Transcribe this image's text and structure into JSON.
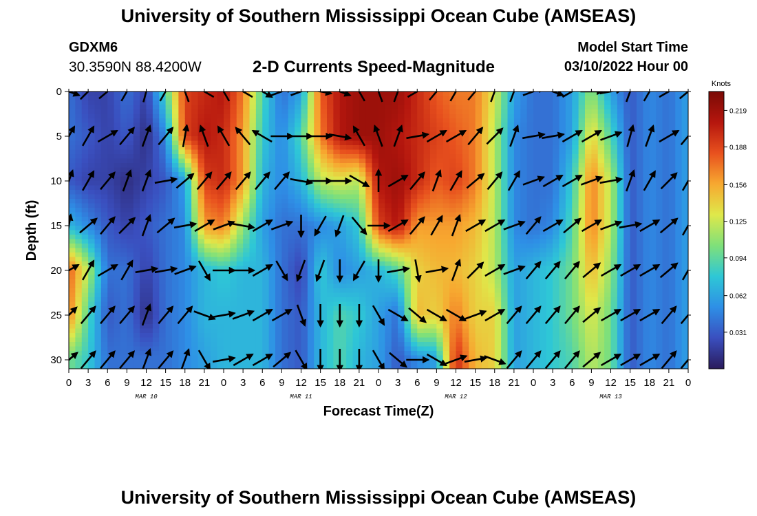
{
  "header": {
    "title": "University of Southern Mississippi Ocean Cube (AMSEAS)",
    "station_id": "GDXM6",
    "station_coords": "30.3590N  88.4200W",
    "subtitle": "2-D Currents Speed-Magnitude",
    "model_start_label": "Model Start Time",
    "model_start_value": "03/10/2022 Hour 00"
  },
  "footer": {
    "title": "University of Southern Mississippi Ocean Cube (AMSEAS)"
  },
  "colors": {
    "scale": [
      "#2a1b5c",
      "#3a4fbf",
      "#2e8fe6",
      "#2ec7d6",
      "#7fe07a",
      "#dfe84a",
      "#f7a830",
      "#e8511e",
      "#b5160e",
      "#7a0a05"
    ]
  },
  "chart_data": {
    "type": "heatmap",
    "title": "2-D Currents Speed-Magnitude",
    "xlabel": "Forecast Time(Z)",
    "ylabel": "Depth (ft)",
    "x_range_hours": [
      0,
      96
    ],
    "ylim": [
      0,
      31
    ],
    "x_ticks": [
      0,
      3,
      6,
      9,
      12,
      15,
      18,
      21,
      24,
      27,
      30,
      33,
      36,
      39,
      42,
      45,
      48,
      51,
      54,
      57,
      60,
      63,
      66,
      69,
      72,
      75,
      78,
      81,
      84,
      87,
      90,
      93,
      96
    ],
    "x_tick_labels": [
      "0",
      "3",
      "6",
      "9",
      "12",
      "15",
      "18",
      "21",
      "0",
      "3",
      "6",
      "9",
      "12",
      "15",
      "18",
      "21",
      "0",
      "3",
      "6",
      "9",
      "12",
      "15",
      "18",
      "21",
      "0",
      "3",
      "6",
      "9",
      "12",
      "15",
      "18",
      "21",
      "0"
    ],
    "y_ticks": [
      0,
      5,
      10,
      15,
      20,
      25,
      30
    ],
    "y_tick_labels": [
      "0",
      "5",
      "10",
      "15",
      "20",
      "25",
      "30"
    ],
    "day_labels": [
      {
        "hour": 12,
        "text": "MAR 10"
      },
      {
        "hour": 36,
        "text": "MAR 11"
      },
      {
        "hour": 60,
        "text": "MAR 12"
      },
      {
        "hour": 84,
        "text": "MAR 13"
      }
    ],
    "colorbar": {
      "units": "Knots",
      "min": 0,
      "max": 0.235,
      "ticks": [
        0.219,
        0.188,
        0.156,
        0.125,
        0.094,
        0.062,
        0.031
      ]
    },
    "speed_grid": {
      "hours": [
        0,
        3,
        6,
        9,
        12,
        15,
        18,
        21,
        24,
        27,
        30,
        33,
        36,
        39,
        42,
        45,
        48,
        51,
        54,
        57,
        60,
        63,
        66,
        69,
        72,
        75,
        78,
        81,
        84,
        87,
        90,
        93,
        96
      ],
      "depths": [
        0,
        5,
        10,
        15,
        20,
        25,
        30
      ],
      "values": [
        [
          0.04,
          0.02,
          0.02,
          0.04,
          0.02,
          0.09,
          0.19,
          0.2,
          0.21,
          0.17,
          0.09,
          0.04,
          0.06,
          0.18,
          0.21,
          0.22,
          0.22,
          0.22,
          0.2,
          0.18,
          0.17,
          0.17,
          0.13,
          0.06,
          0.04,
          0.04,
          0.06,
          0.11,
          0.06,
          0.03,
          0.05,
          0.04,
          0.06
        ],
        [
          0.04,
          0.03,
          0.02,
          0.03,
          0.01,
          0.05,
          0.19,
          0.21,
          0.2,
          0.16,
          0.08,
          0.05,
          0.09,
          0.17,
          0.21,
          0.22,
          0.22,
          0.21,
          0.2,
          0.19,
          0.18,
          0.17,
          0.12,
          0.05,
          0.04,
          0.04,
          0.06,
          0.14,
          0.09,
          0.03,
          0.05,
          0.04,
          0.06
        ],
        [
          0.03,
          0.02,
          0.02,
          0.01,
          0.02,
          0.03,
          0.06,
          0.19,
          0.2,
          0.16,
          0.07,
          0.05,
          0.07,
          0.12,
          0.13,
          0.12,
          0.21,
          0.22,
          0.2,
          0.18,
          0.19,
          0.17,
          0.12,
          0.05,
          0.04,
          0.04,
          0.08,
          0.17,
          0.12,
          0.03,
          0.05,
          0.04,
          0.06
        ],
        [
          0.07,
          0.05,
          0.03,
          0.02,
          0.03,
          0.04,
          0.05,
          0.16,
          0.17,
          0.11,
          0.06,
          0.04,
          0.04,
          0.05,
          0.06,
          0.08,
          0.19,
          0.21,
          0.16,
          0.16,
          0.16,
          0.15,
          0.12,
          0.05,
          0.04,
          0.05,
          0.09,
          0.17,
          0.12,
          0.03,
          0.05,
          0.04,
          0.06
        ],
        [
          0.18,
          0.12,
          0.04,
          0.04,
          0.02,
          0.04,
          0.05,
          0.07,
          0.08,
          0.07,
          0.07,
          0.04,
          0.02,
          0.08,
          0.05,
          0.06,
          0.07,
          0.09,
          0.14,
          0.15,
          0.15,
          0.14,
          0.12,
          0.06,
          0.07,
          0.08,
          0.1,
          0.15,
          0.11,
          0.03,
          0.05,
          0.04,
          0.06
        ],
        [
          0.17,
          0.09,
          0.03,
          0.04,
          0.01,
          0.04,
          0.05,
          0.07,
          0.07,
          0.07,
          0.07,
          0.04,
          0.03,
          0.07,
          0.09,
          0.08,
          0.06,
          0.04,
          0.15,
          0.14,
          0.17,
          0.14,
          0.14,
          0.06,
          0.07,
          0.08,
          0.1,
          0.13,
          0.1,
          0.03,
          0.05,
          0.04,
          0.06
        ],
        [
          0.1,
          0.08,
          0.04,
          0.04,
          0.04,
          0.04,
          0.05,
          0.06,
          0.07,
          0.07,
          0.07,
          0.04,
          0.03,
          0.07,
          0.09,
          0.07,
          0.06,
          0.03,
          0.05,
          0.06,
          0.2,
          0.15,
          0.14,
          0.06,
          0.07,
          0.08,
          0.09,
          0.12,
          0.1,
          0.03,
          0.05,
          0.04,
          0.06
        ]
      ]
    },
    "vectors": {
      "hours": [
        0,
        3,
        6,
        9,
        12,
        15,
        18,
        21,
        24,
        27,
        30,
        33,
        36,
        39,
        42,
        45,
        48,
        51,
        54,
        57,
        60,
        63,
        66,
        69,
        72,
        75,
        78,
        81,
        84,
        87,
        90,
        93,
        96
      ],
      "depths": [
        0,
        5,
        10,
        15,
        20,
        25,
        30
      ],
      "direction_deg": [
        [
          110,
          45,
          50,
          30,
          15,
          30,
          340,
          300,
          330,
          300,
          120,
          70,
          70,
          100,
          110,
          330,
          340,
          20,
          60,
          40,
          30,
          40,
          20,
          20,
          70,
          110,
          60,
          90,
          80,
          20,
          30,
          60,
          50
        ],
        [
          30,
          30,
          60,
          40,
          20,
          40,
          10,
          340,
          330,
          320,
          300,
          90,
          90,
          90,
          100,
          330,
          340,
          20,
          80,
          60,
          60,
          40,
          45,
          20,
          80,
          80,
          60,
          60,
          70,
          15,
          20,
          60,
          40
        ],
        [
          20,
          30,
          40,
          20,
          20,
          80,
          50,
          40,
          40,
          40,
          40,
          40,
          100,
          90,
          90,
          120,
          0,
          60,
          40,
          20,
          30,
          50,
          40,
          30,
          70,
          60,
          60,
          70,
          80,
          20,
          30,
          45,
          30
        ],
        [
          10,
          50,
          40,
          45,
          20,
          50,
          80,
          60,
          70,
          100,
          60,
          70,
          180,
          210,
          200,
          140,
          90,
          60,
          40,
          30,
          20,
          60,
          60,
          70,
          40,
          60,
          50,
          60,
          70,
          80,
          60,
          50,
          30
        ],
        [
          60,
          30,
          60,
          30,
          80,
          80,
          70,
          150,
          90,
          90,
          60,
          150,
          200,
          200,
          180,
          210,
          180,
          80,
          170,
          80,
          20,
          45,
          60,
          70,
          40,
          40,
          40,
          50,
          60,
          60,
          60,
          50,
          30
        ],
        [
          45,
          40,
          40,
          40,
          20,
          40,
          40,
          110,
          80,
          70,
          60,
          60,
          160,
          180,
          180,
          180,
          150,
          120,
          130,
          120,
          120,
          70,
          60,
          40,
          40,
          40,
          40,
          50,
          60,
          60,
          60,
          40,
          40
        ],
        [
          50,
          40,
          40,
          40,
          20,
          40,
          20,
          150,
          80,
          60,
          60,
          50,
          150,
          180,
          180,
          180,
          150,
          130,
          90,
          120,
          70,
          80,
          110,
          40,
          40,
          40,
          40,
          50,
          60,
          60,
          60,
          40,
          40
        ]
      ]
    }
  }
}
